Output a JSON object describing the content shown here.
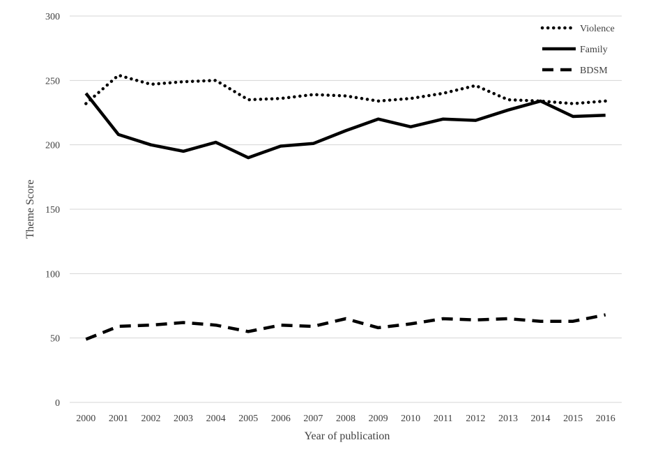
{
  "chart_data": {
    "type": "line",
    "title": "",
    "xlabel": "Year of publication",
    "ylabel": "Theme Score",
    "ylim": [
      0,
      300
    ],
    "yticks": [
      0,
      50,
      100,
      150,
      200,
      250,
      300
    ],
    "grid": "horizontal",
    "legend_position": "top-right",
    "categories": [
      "2000",
      "2001",
      "2002",
      "2003",
      "2004",
      "2005",
      "2006",
      "2007",
      "2008",
      "2009",
      "2010",
      "2011",
      "2012",
      "2013",
      "2014",
      "2015",
      "2016"
    ],
    "series": [
      {
        "name": "Violence",
        "style": "dotted",
        "color": "#000000",
        "values": [
          232,
          254,
          247,
          249,
          250,
          235,
          236,
          239,
          238,
          234,
          236,
          240,
          246,
          235,
          234,
          232,
          234
        ]
      },
      {
        "name": "Family",
        "style": "solid",
        "color": "#000000",
        "values": [
          240,
          208,
          200,
          195,
          202,
          190,
          199,
          201,
          211,
          220,
          214,
          220,
          219,
          227,
          234,
          222,
          223
        ]
      },
      {
        "name": "BDSM",
        "style": "dashed",
        "color": "#000000",
        "values": [
          49,
          59,
          60,
          62,
          60,
          55,
          60,
          59,
          65,
          58,
          61,
          65,
          64,
          65,
          63,
          63,
          68
        ]
      }
    ]
  }
}
